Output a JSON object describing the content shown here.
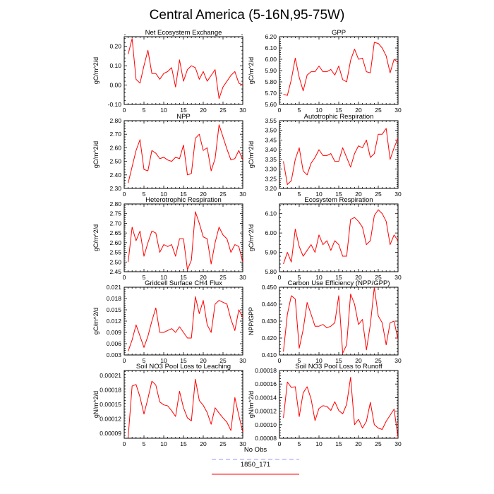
{
  "figure_title": "Central America (5-16N,95-75W)",
  "colors": {
    "model": "#ff0000",
    "obs": "#9999ff",
    "axis": "#000000"
  },
  "legend": [
    {
      "label": "No Obs",
      "color": "#9999ff",
      "style": "dashed"
    },
    {
      "label": "1850_171",
      "color": "#ff0000",
      "style": "solid"
    }
  ],
  "chart_data": [
    {
      "type": "line",
      "title": "Net Ecosystem Exchange",
      "ylabel": "gC/m^2/d",
      "xlim": [
        0,
        30
      ],
      "xticks": [
        "0",
        "5",
        "10",
        "15",
        "20",
        "25",
        "30"
      ],
      "ylim": [
        -0.1,
        0.25
      ],
      "yticks": [
        "-0.10",
        "0.00",
        "0.10",
        "0.20"
      ],
      "ytick_values": [
        -0.1,
        0.0,
        0.1,
        0.2
      ],
      "series": [
        {
          "label": "1850_171",
          "x": [
            1,
            2,
            3,
            4,
            5,
            6,
            7,
            8,
            9,
            10,
            11,
            12,
            13,
            14,
            15,
            16,
            17,
            18,
            19,
            20,
            21,
            22,
            23,
            24,
            25,
            26,
            27,
            28,
            29,
            30
          ],
          "y": [
            0.16,
            0.24,
            0.03,
            0.01,
            0.1,
            0.18,
            0.06,
            0.06,
            0.03,
            0.06,
            0.07,
            0.09,
            -0.01,
            0.13,
            0.02,
            0.08,
            0.1,
            0.09,
            0.03,
            0.07,
            0.02,
            0.05,
            0.08,
            -0.07,
            -0.01,
            0.02,
            0.05,
            0.07,
            0.01,
            0.0
          ]
        }
      ]
    },
    {
      "type": "line",
      "title": "GPP",
      "ylabel": "gC/m^2/d",
      "xlim": [
        0,
        30
      ],
      "xticks": [
        "0",
        "5",
        "10",
        "15",
        "20",
        "25",
        "30"
      ],
      "ylim": [
        5.6,
        6.2
      ],
      "yticks": [
        "5.60",
        "5.70",
        "5.80",
        "5.90",
        "6.00",
        "6.10",
        "6.20"
      ],
      "ytick_values": [
        5.6,
        5.7,
        5.8,
        5.9,
        6.0,
        6.1,
        6.2
      ],
      "series": [
        {
          "label": "1850_171",
          "x": [
            1,
            2,
            3,
            4,
            5,
            6,
            7,
            8,
            9,
            10,
            11,
            12,
            13,
            14,
            15,
            16,
            17,
            18,
            19,
            20,
            21,
            22,
            23,
            24,
            25,
            26,
            27,
            28,
            29,
            30
          ],
          "y": [
            5.69,
            5.68,
            5.82,
            6.01,
            5.84,
            5.72,
            5.86,
            5.89,
            5.89,
            5.94,
            5.89,
            5.89,
            5.91,
            5.86,
            5.94,
            5.82,
            5.8,
            5.99,
            6.09,
            6.0,
            6.01,
            5.89,
            5.88,
            6.15,
            6.14,
            6.1,
            6.03,
            5.88,
            6.0,
            5.97
          ]
        }
      ]
    },
    {
      "type": "line",
      "title": "NPP",
      "ylabel": "gC/m^2/d",
      "xlim": [
        0,
        30
      ],
      "xticks": [
        "0",
        "5",
        "10",
        "15",
        "20",
        "25",
        "30"
      ],
      "ylim": [
        2.3,
        2.8
      ],
      "yticks": [
        "2.30",
        "2.40",
        "2.50",
        "2.60",
        "2.70",
        "2.80"
      ],
      "ytick_values": [
        2.3,
        2.4,
        2.5,
        2.6,
        2.7,
        2.8
      ],
      "series": [
        {
          "label": "1850_171",
          "x": [
            1,
            2,
            3,
            4,
            5,
            6,
            7,
            8,
            9,
            10,
            11,
            12,
            13,
            14,
            15,
            16,
            17,
            18,
            19,
            20,
            21,
            22,
            23,
            24,
            25,
            26,
            27,
            28,
            29,
            30
          ],
          "y": [
            2.34,
            2.46,
            2.58,
            2.66,
            2.44,
            2.43,
            2.58,
            2.56,
            2.52,
            2.53,
            2.51,
            2.5,
            2.53,
            2.52,
            2.62,
            2.4,
            2.41,
            2.67,
            2.7,
            2.58,
            2.6,
            2.43,
            2.52,
            2.77,
            2.68,
            2.59,
            2.51,
            2.52,
            2.58,
            2.51
          ]
        }
      ]
    },
    {
      "type": "line",
      "title": "Autotrophic Respiration",
      "ylabel": "gC/m^2/d",
      "xlim": [
        0,
        30
      ],
      "xticks": [
        "0",
        "5",
        "10",
        "15",
        "20",
        "25",
        "30"
      ],
      "ylim": [
        3.2,
        3.55
      ],
      "yticks": [
        "3.20",
        "3.25",
        "3.30",
        "3.35",
        "3.40",
        "3.45",
        "3.50",
        "3.55"
      ],
      "ytick_values": [
        3.2,
        3.25,
        3.3,
        3.35,
        3.4,
        3.45,
        3.5,
        3.55
      ],
      "series": [
        {
          "label": "1850_171",
          "x": [
            1,
            2,
            3,
            4,
            5,
            6,
            7,
            8,
            9,
            10,
            11,
            12,
            13,
            14,
            15,
            16,
            17,
            18,
            19,
            20,
            21,
            22,
            23,
            24,
            25,
            26,
            27,
            28,
            29,
            30
          ],
          "y": [
            3.34,
            3.22,
            3.24,
            3.35,
            3.41,
            3.29,
            3.27,
            3.33,
            3.36,
            3.4,
            3.37,
            3.37,
            3.38,
            3.34,
            3.34,
            3.41,
            3.36,
            3.31,
            3.38,
            3.42,
            3.41,
            3.45,
            3.36,
            3.38,
            3.48,
            3.48,
            3.51,
            3.35,
            3.41,
            3.46
          ]
        }
      ]
    },
    {
      "type": "line",
      "title": "Heterotrophic Respiration",
      "ylabel": "gC/m^2/d",
      "xlim": [
        0,
        30
      ],
      "xticks": [
        "0",
        "5",
        "10",
        "15",
        "20",
        "25",
        "30"
      ],
      "ylim": [
        2.45,
        2.8
      ],
      "yticks": [
        "2.45",
        "2.50",
        "2.55",
        "2.60",
        "2.65",
        "2.70",
        "2.75",
        "2.80"
      ],
      "ytick_values": [
        2.45,
        2.5,
        2.55,
        2.6,
        2.65,
        2.7,
        2.75,
        2.8
      ],
      "series": [
        {
          "label": "1850_171",
          "x": [
            1,
            2,
            3,
            4,
            5,
            6,
            7,
            8,
            9,
            10,
            11,
            12,
            13,
            14,
            15,
            16,
            17,
            18,
            19,
            20,
            21,
            22,
            23,
            24,
            25,
            26,
            27,
            28,
            29,
            30
          ],
          "y": [
            2.5,
            2.68,
            2.61,
            2.66,
            2.53,
            2.6,
            2.66,
            2.65,
            2.55,
            2.59,
            2.58,
            2.59,
            2.53,
            2.62,
            2.62,
            2.46,
            2.51,
            2.76,
            2.7,
            2.63,
            2.62,
            2.49,
            2.6,
            2.68,
            2.64,
            2.62,
            2.55,
            2.59,
            2.58,
            2.5
          ]
        }
      ]
    },
    {
      "type": "line",
      "title": "Ecosystem Respiration",
      "ylabel": "gC/m^2/d",
      "xlim": [
        0,
        30
      ],
      "xticks": [
        "0",
        "5",
        "10",
        "15",
        "20",
        "25",
        "30"
      ],
      "ylim": [
        5.8,
        6.15
      ],
      "yticks": [
        "5.80",
        "5.90",
        "6.00",
        "6.10"
      ],
      "ytick_values": [
        5.8,
        5.9,
        6.0,
        6.1
      ],
      "series": [
        {
          "label": "1850_171",
          "x": [
            1,
            2,
            3,
            4,
            5,
            6,
            7,
            8,
            9,
            10,
            11,
            12,
            13,
            14,
            15,
            16,
            17,
            18,
            19,
            20,
            21,
            22,
            23,
            24,
            25,
            26,
            27,
            28,
            29,
            30
          ],
          "y": [
            5.84,
            5.9,
            5.85,
            6.02,
            5.93,
            5.88,
            5.91,
            5.94,
            5.9,
            5.99,
            5.94,
            5.96,
            5.91,
            5.96,
            5.94,
            5.88,
            5.88,
            6.07,
            6.08,
            6.06,
            6.03,
            5.94,
            5.96,
            6.09,
            6.12,
            6.1,
            6.06,
            5.94,
            5.99,
            5.96
          ]
        }
      ]
    },
    {
      "type": "line",
      "title": "Gridcell Surface CH4 Flux",
      "ylabel": "gC/m^2/d",
      "xlim": [
        0,
        30
      ],
      "xticks": [
        "0",
        "5",
        "10",
        "15",
        "20",
        "25",
        "30"
      ],
      "ylim": [
        0.003,
        0.021
      ],
      "yticks": [
        "0.003",
        "0.006",
        "0.009",
        "0.012",
        "0.015",
        "0.018",
        "0.021"
      ],
      "ytick_values": [
        0.003,
        0.006,
        0.009,
        0.012,
        0.015,
        0.018,
        0.021
      ],
      "series": [
        {
          "label": "1850_171",
          "x": [
            1,
            2,
            3,
            4,
            5,
            6,
            7,
            8,
            9,
            10,
            11,
            12,
            13,
            14,
            15,
            16,
            17,
            18,
            19,
            20,
            21,
            22,
            23,
            24,
            25,
            26,
            27,
            28,
            29,
            30
          ],
          "y": [
            0.004,
            0.007,
            0.011,
            0.008,
            0.005,
            0.008,
            0.012,
            0.0155,
            0.009,
            0.009,
            0.0095,
            0.01,
            0.009,
            0.0105,
            0.009,
            0.0075,
            0.0075,
            0.0185,
            0.014,
            0.0175,
            0.011,
            0.009,
            0.0165,
            0.0175,
            0.017,
            0.0165,
            0.0125,
            0.0095,
            0.015,
            0.013
          ]
        }
      ]
    },
    {
      "type": "line",
      "title": "Carbon Use Efficiency (NPP/GPP)",
      "ylabel": "NPP/GPP",
      "xlim": [
        0,
        30
      ],
      "xticks": [
        "0",
        "5",
        "10",
        "15",
        "20",
        "25",
        "30"
      ],
      "ylim": [
        0.41,
        0.45
      ],
      "yticks": [
        "0.410",
        "0.420",
        "0.430",
        "0.440",
        "0.450"
      ],
      "ytick_values": [
        0.41,
        0.42,
        0.43,
        0.44,
        0.45
      ],
      "series": [
        {
          "label": "1850_171",
          "x": [
            1,
            2,
            3,
            4,
            5,
            6,
            7,
            8,
            9,
            10,
            11,
            12,
            13,
            14,
            15,
            16,
            17,
            18,
            19,
            20,
            21,
            22,
            23,
            24,
            25,
            26,
            27,
            28,
            29,
            30
          ],
          "y": [
            0.412,
            0.434,
            0.445,
            0.443,
            0.414,
            0.425,
            0.441,
            0.434,
            0.427,
            0.427,
            0.428,
            0.426,
            0.427,
            0.429,
            0.445,
            0.411,
            0.416,
            0.446,
            0.44,
            0.428,
            0.431,
            0.413,
            0.428,
            0.45,
            0.433,
            0.429,
            0.416,
            0.429,
            0.43,
            0.419
          ]
        }
      ]
    },
    {
      "type": "line",
      "title": "Soil NO3 Pool Loss to Leaching",
      "ylabel": "gN/m^2/d",
      "xlim": [
        0,
        30
      ],
      "xticks": [
        "0",
        "5",
        "10",
        "15",
        "20",
        "25",
        "30"
      ],
      "ylim": [
        8e-05,
        0.00022
      ],
      "yticks": [
        "0.00009",
        "0.00012",
        "0.00015",
        "0.00018",
        "0.00021"
      ],
      "ytick_values": [
        9e-05,
        0.00012,
        0.00015,
        0.00018,
        0.00021
      ],
      "series": [
        {
          "label": "1850_171",
          "x": [
            1,
            2,
            3,
            4,
            5,
            6,
            7,
            8,
            9,
            10,
            11,
            12,
            13,
            14,
            15,
            16,
            17,
            18,
            19,
            20,
            21,
            22,
            23,
            24,
            25,
            26,
            27,
            28,
            29,
            30
          ],
          "y": [
            8.2e-05,
            0.000188,
            0.000191,
            0.000165,
            0.00013,
            0.000162,
            0.000198,
            0.00019,
            0.000155,
            0.000149,
            0.000147,
            0.000137,
            0.000125,
            0.000177,
            0.000143,
            0.000122,
            0.000116,
            0.000202,
            0.000158,
            0.000148,
            0.000133,
            0.000109,
            0.000143,
            0.000132,
            0.000122,
            0.000113,
            9.6e-05,
            0.000164,
            0.000127,
            9.3e-05
          ]
        }
      ]
    },
    {
      "type": "line",
      "title": "Soil NO3 Pool Loss to Runoff",
      "ylabel": "gN/m^2/d",
      "xlim": [
        0,
        30
      ],
      "xticks": [
        "0",
        "5",
        "10",
        "15",
        "20",
        "25",
        "30"
      ],
      "ylim": [
        8e-05,
        0.00018
      ],
      "yticks": [
        "0.00008",
        "0.00010",
        "0.00012",
        "0.00014",
        "0.00016",
        "0.00018"
      ],
      "ytick_values": [
        8e-05,
        0.0001,
        0.00012,
        0.00014,
        0.00016,
        0.00018
      ],
      "series": [
        {
          "label": "1850_171",
          "x": [
            1,
            2,
            3,
            4,
            5,
            6,
            7,
            8,
            9,
            10,
            11,
            12,
            13,
            14,
            15,
            16,
            17,
            18,
            19,
            20,
            21,
            22,
            23,
            24,
            25,
            26,
            27,
            28,
            29,
            30
          ],
          "y": [
            0.00011,
            0.000163,
            0.000155,
            0.000156,
            0.000112,
            0.000147,
            0.000156,
            0.000138,
            0.000106,
            0.000124,
            0.000128,
            0.000127,
            0.000121,
            0.000134,
            0.000121,
            0.000116,
            0.00013,
            0.00017,
            0.0001,
            0.000108,
            9.5e-05,
            0.000105,
            0.000133,
            0.0001,
            9.5e-05,
            9.3e-05,
            0.000105,
            0.000114,
            0.000123,
            8.1e-05
          ]
        }
      ]
    }
  ]
}
